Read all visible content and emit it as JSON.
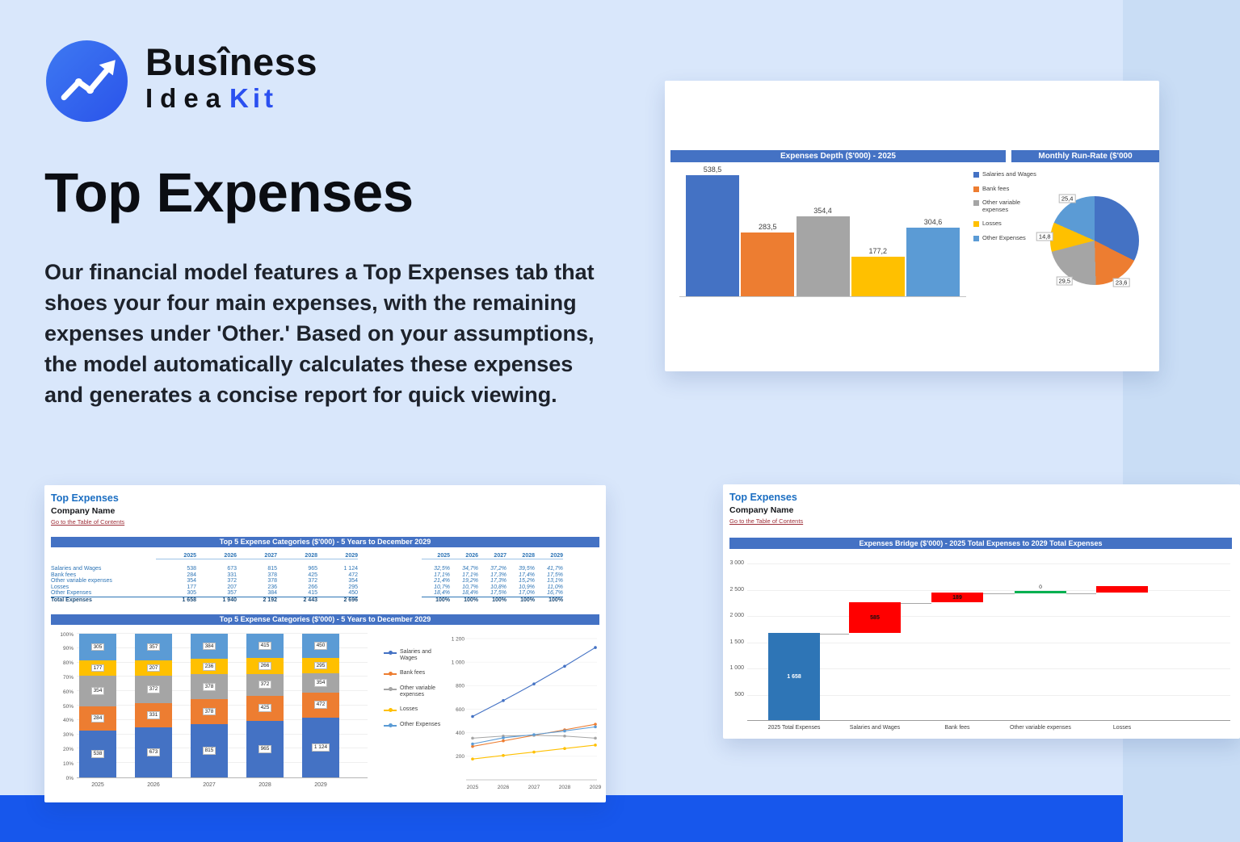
{
  "page": {
    "background": "#d9e7fb",
    "footer_band_color": "#1757ec"
  },
  "logo": {
    "brand_top": "Busîness",
    "brand_bottom_dark": "Idea",
    "brand_bottom_accent": "Kit"
  },
  "hero": {
    "title": "Top Expenses",
    "paragraph": "Our financial model features a Top Expenses tab that shoes your four main expenses, with the remaining expenses under 'Other.' Based on your assumptions, the model automatically calculates these expenses and generates a concise report for quick viewing."
  },
  "palette": {
    "excel_blue": "#4472C4",
    "excel_orange": "#ED7D31",
    "excel_gray": "#A5A5A5",
    "excel_yellow": "#FFC000",
    "excel_lightblue": "#5B9BD5",
    "bridge_total_blue": "#2E75B6",
    "bridge_red": "#FF0000",
    "bridge_green": "#00B050",
    "header_bar_blue": "#4472C4"
  },
  "depth_card": {
    "header_left": "Expenses Depth ($'000) - 2025",
    "header_right": "Monthly Run-Rate ($'000"
  },
  "sheet_card": {
    "sheet_title": "Top Expenses",
    "company": "Company Name",
    "toc_link": "Go to the Table of Contents",
    "section1_title": "Top 5 Expense Categories ($'000) - 5 Years to December 2029",
    "section2_title": "Top 5 Expense Categories ($'000) - 5 Years to December 2029",
    "years": [
      "2025",
      "2026",
      "2027",
      "2028",
      "2029"
    ],
    "rows": [
      {
        "label": "Salaries and Wages",
        "values": [
          "538",
          "673",
          "815",
          "965",
          "1 124"
        ],
        "pcts": [
          "32,5%",
          "34,7%",
          "37,2%",
          "39,5%",
          "41,7%"
        ]
      },
      {
        "label": "Bank fees",
        "values": [
          "284",
          "331",
          "378",
          "425",
          "472"
        ],
        "pcts": [
          "17,1%",
          "17,1%",
          "17,3%",
          "17,4%",
          "17,5%"
        ]
      },
      {
        "label": "Other variable expenses",
        "values": [
          "354",
          "372",
          "378",
          "372",
          "354"
        ],
        "pcts": [
          "21,4%",
          "19,2%",
          "17,3%",
          "15,2%",
          "13,1%"
        ]
      },
      {
        "label": "Losses",
        "values": [
          "177",
          "207",
          "236",
          "266",
          "295"
        ],
        "pcts": [
          "10,7%",
          "10,7%",
          "10,8%",
          "10,9%",
          "11,0%"
        ]
      },
      {
        "label": "Other Expenses",
        "values": [
          "305",
          "357",
          "384",
          "415",
          "450"
        ],
        "pcts": [
          "18,4%",
          "18,4%",
          "17,5%",
          "17,0%",
          "16,7%"
        ]
      }
    ],
    "total_row": {
      "label": "Total Expenses",
      "values": [
        "1 658",
        "1 940",
        "2 192",
        "2 443",
        "2 696"
      ],
      "pcts": [
        "100%",
        "100%",
        "100%",
        "100%",
        "100%"
      ]
    }
  },
  "bridge_card": {
    "sheet_title": "Top Expenses",
    "company": "Company Name",
    "toc_link": "Go to the Table of Contents",
    "section_title": "Expenses Bridge ($'000) - 2025 Total Expenses to 2029 Total Expenses"
  },
  "chart_data": [
    {
      "id": "expenses_depth",
      "type": "bar",
      "title": "Expenses Depth ($'000) - 2025",
      "categories": [
        "Salaries and Wages",
        "Bank fees",
        "Other variable expenses",
        "Losses",
        "Other Expenses"
      ],
      "values": [
        538.5,
        283.5,
        354.4,
        177.2,
        304.6
      ],
      "value_labels": [
        "538,5",
        "283,5",
        "354,4",
        "177,2",
        "304,6"
      ],
      "colors": [
        "#4472C4",
        "#ED7D31",
        "#A5A5A5",
        "#FFC000",
        "#5B9BD5"
      ],
      "legend": [
        "Salaries and Wages",
        "Bank fees",
        "Other variable expenses",
        "Losses",
        "Other Expenses"
      ],
      "legend_position": "right",
      "ylim": [
        0,
        600
      ],
      "grid": false
    },
    {
      "id": "monthly_run_rate",
      "type": "pie",
      "title": "Monthly Run-Rate ($'000",
      "slices": [
        {
          "name": "Salaries and Wages",
          "pct": 32.5,
          "color": "#4472C4",
          "label": ""
        },
        {
          "name": "Bank fees",
          "pct": 17.1,
          "color": "#ED7D31",
          "label": "23,6"
        },
        {
          "name": "Other variable expenses",
          "pct": 21.4,
          "color": "#A5A5A5",
          "label": "29,5"
        },
        {
          "name": "Losses",
          "pct": 10.7,
          "color": "#FFC000",
          "label": "14,8"
        },
        {
          "name": "Other Expenses",
          "pct": 18.4,
          "color": "#5B9BD5",
          "label": "25,4"
        }
      ]
    },
    {
      "id": "top5_stacked",
      "type": "bar",
      "subtype": "stacked-100",
      "title": "Top 5 Expense Categories ($'000) - 5 Years to December 2029",
      "categories": [
        "2025",
        "2026",
        "2027",
        "2028",
        "2029"
      ],
      "totals": [
        1658,
        1940,
        2192,
        2443,
        2696
      ],
      "series": [
        {
          "name": "Salaries and Wages",
          "color": "#4472C4",
          "values": [
            538,
            673,
            815,
            965,
            1124
          ],
          "labels": [
            "538",
            "673",
            "815",
            "965",
            "1 124"
          ]
        },
        {
          "name": "Bank fees",
          "color": "#ED7D31",
          "values": [
            284,
            331,
            378,
            425,
            472
          ],
          "labels": [
            "284",
            "331",
            "378",
            "425",
            "472"
          ]
        },
        {
          "name": "Other variable expenses",
          "color": "#A5A5A5",
          "values": [
            354,
            372,
            378,
            372,
            354
          ],
          "labels": [
            "354",
            "372",
            "378",
            "372",
            "354"
          ]
        },
        {
          "name": "Losses",
          "color": "#FFC000",
          "values": [
            177,
            207,
            236,
            266,
            295
          ],
          "labels": [
            "177",
            "207",
            "236",
            "266",
            "295"
          ]
        },
        {
          "name": "Other Expenses",
          "color": "#5B9BD5",
          "values": [
            305,
            357,
            384,
            415,
            450
          ],
          "labels": [
            "305",
            "357",
            "384",
            "415",
            "450"
          ]
        }
      ],
      "y_ticks": [
        "0%",
        "10%",
        "20%",
        "30%",
        "40%",
        "50%",
        "60%",
        "70%",
        "80%",
        "90%",
        "100%"
      ],
      "ylim": [
        0,
        1
      ]
    },
    {
      "id": "top5_lines",
      "type": "line",
      "categories": [
        "2025",
        "2026",
        "2027",
        "2028",
        "2029"
      ],
      "series": [
        {
          "name": "Salaries and Wages",
          "color": "#4472C4",
          "values": [
            538,
            673,
            815,
            965,
            1124
          ]
        },
        {
          "name": "Bank fees",
          "color": "#ED7D31",
          "values": [
            284,
            331,
            378,
            425,
            472
          ]
        },
        {
          "name": "Other variable expenses",
          "color": "#A5A5A5",
          "values": [
            354,
            372,
            378,
            372,
            354
          ]
        },
        {
          "name": "Losses",
          "color": "#FFC000",
          "values": [
            177,
            207,
            236,
            266,
            295
          ]
        },
        {
          "name": "Other Expenses",
          "color": "#5B9BD5",
          "values": [
            305,
            357,
            384,
            415,
            450
          ]
        }
      ],
      "ylim": [
        0,
        1200
      ],
      "y_ticks": [
        "200",
        "400",
        "600",
        "800",
        "1 000",
        "1 200"
      ]
    },
    {
      "id": "expenses_bridge",
      "type": "waterfall",
      "title": "Expenses Bridge ($'000) - 2025 Total Expenses to 2029 Total Expenses",
      "bars": [
        {
          "label": "2025 Total Expenses",
          "kind": "total",
          "value": 1658,
          "display": "1 658",
          "color": "#2E75B6"
        },
        {
          "label": "Salaries and Wages",
          "kind": "increase",
          "value": 585,
          "display": "585",
          "color": "#FF0000"
        },
        {
          "label": "Bank fees",
          "kind": "increase",
          "value": 189,
          "display": "189",
          "color": "#FF0000"
        },
        {
          "label": "Other variable expenses",
          "kind": "zero",
          "value": 0,
          "display": "0",
          "color": "#00B050"
        },
        {
          "label": "Losses",
          "kind": "increase",
          "value": 118,
          "display": "",
          "color": "#FF0000"
        }
      ],
      "ylim": [
        0,
        3000
      ],
      "y_ticks": [
        "3 000",
        "2 500",
        "2 000",
        "1 500",
        "1 000",
        "500"
      ]
    }
  ]
}
